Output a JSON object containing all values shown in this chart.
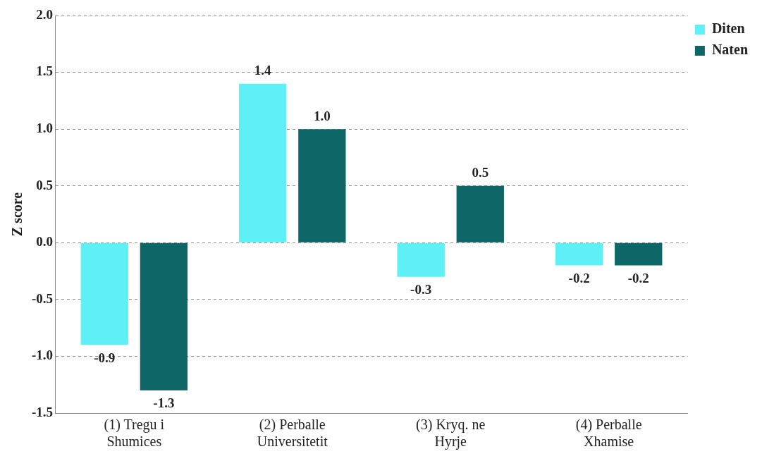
{
  "chart_data": {
    "type": "bar",
    "ylabel": "Z score",
    "categories": [
      "(1) Tregu i Shumices",
      "(2) Perballe Universitetit",
      "(3) Kryq. ne Hyrje",
      "(4) Perballe Xhamise"
    ],
    "series": [
      {
        "name": "Diten",
        "color": "#5ef0f5",
        "values": [
          -0.9,
          1.4,
          -0.3,
          -0.2
        ],
        "value_labels": [
          "-0.9",
          "1.4",
          "-0.3",
          "-0.2"
        ]
      },
      {
        "name": "Naten",
        "color": "#0e6666",
        "values": [
          -1.3,
          1.0,
          0.5,
          -0.2
        ],
        "value_labels": [
          "-1.3",
          "1.0",
          "0.5",
          "-0.2"
        ]
      }
    ],
    "ylim": [
      -1.5,
      2.0
    ],
    "yticks": [
      -1.5,
      {
        "value": -1.0,
        "label": "-1.0"
      },
      -0.5,
      {
        "value": 0,
        "label": "0.0"
      },
      0.5,
      {
        "value": 1.0,
        "label": "1.0"
      },
      1.5,
      {
        "value": 2.0,
        "label": "2.0"
      }
    ],
    "grid": "y",
    "legend": "top right"
  }
}
